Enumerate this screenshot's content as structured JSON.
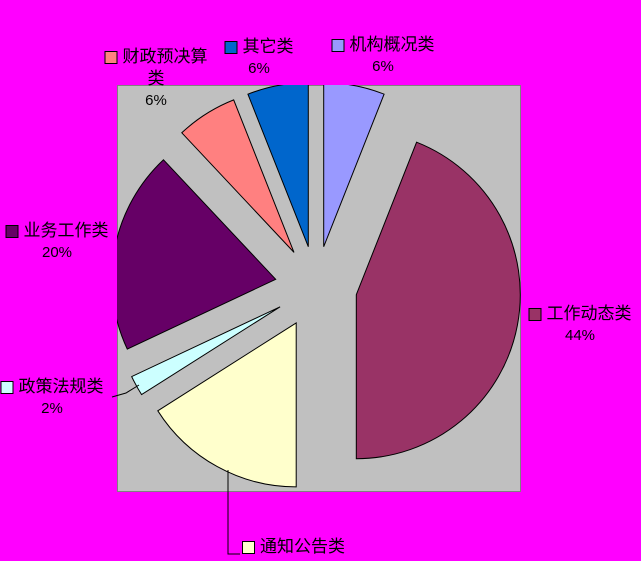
{
  "window": {
    "background": "#FF00FF"
  },
  "chart_data": {
    "type": "pie",
    "title": "",
    "categories": [
      "机构概况类",
      "工作动态类",
      "通知公告类",
      "政策法规类",
      "业务工作类",
      "财政预决算类",
      "其它类"
    ],
    "values": [
      6,
      44,
      16,
      2,
      20,
      6,
      6
    ],
    "unit": "%",
    "colors": [
      "#9999FF",
      "#993366",
      "#FFFFCC",
      "#CCFFFF",
      "#660066",
      "#FF8080",
      "#0066CC"
    ],
    "slice_border_color": "#000000",
    "start_angle_deg": 0,
    "direction": "clockwise",
    "exploded": true,
    "plot_area_fill": "#C0C0C0",
    "plot_area_border": "#808080",
    "legend_position": "data-labels-around-pie"
  },
  "labels": [
    {
      "lines": [
        "财政预决算",
        "类",
        "6%"
      ],
      "color": "#FF8080"
    },
    {
      "lines": [
        "其它类",
        "6%"
      ],
      "color": "#0066CC"
    },
    {
      "lines": [
        "机构概况类",
        "6%"
      ],
      "color": "#9999FF"
    },
    {
      "lines": [
        "业务工作类",
        "20%"
      ],
      "color": "#660066"
    },
    {
      "lines": [
        "政策法规类",
        "2%"
      ],
      "color": "#CCFFFF"
    },
    {
      "lines": [
        "工作动态类",
        "44%"
      ],
      "color": "#993366"
    },
    {
      "lines": [
        "通知公告类"
      ],
      "color": "#FFFFCC"
    }
  ]
}
